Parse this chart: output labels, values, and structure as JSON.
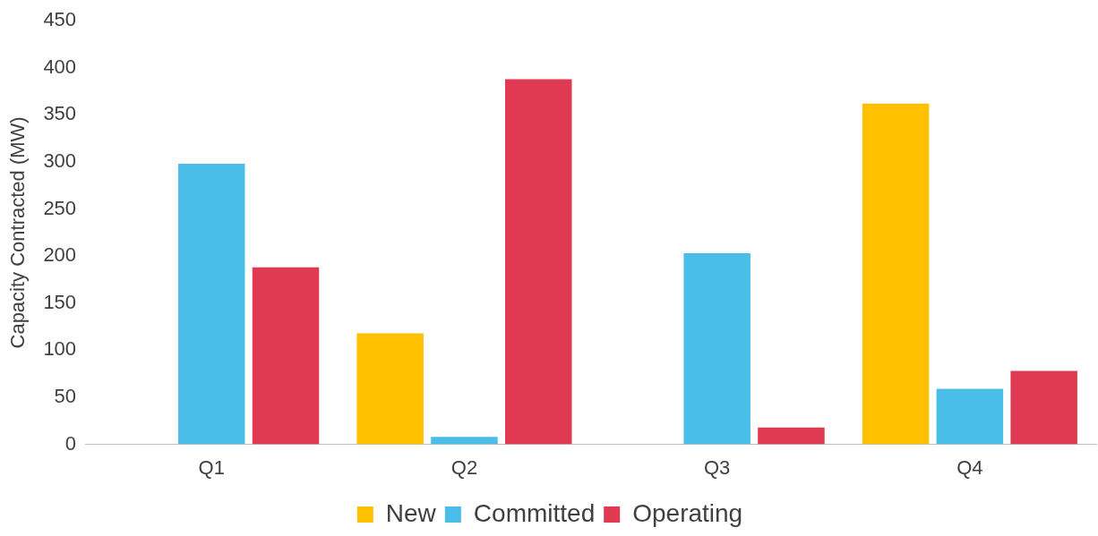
{
  "chart_data": {
    "type": "bar",
    "ylabel": "Capacity Contracted (MW)",
    "categories": [
      "Q1",
      "Q2",
      "Q3",
      "Q4"
    ],
    "series": [
      {
        "name": "New",
        "color": "#ffc000",
        "values": [
          0,
          118,
          0,
          362
        ]
      },
      {
        "name": "Committed",
        "color": "#4bbde9",
        "values": [
          298,
          8,
          203,
          59
        ]
      },
      {
        "name": "Operating",
        "color": "#e03a52",
        "values": [
          188,
          388,
          18,
          78
        ]
      }
    ],
    "ylim": [
      0,
      450
    ],
    "yticks": [
      0,
      50,
      100,
      150,
      200,
      250,
      300,
      350,
      400,
      450
    ],
    "grid": false,
    "legend": "bottom"
  }
}
